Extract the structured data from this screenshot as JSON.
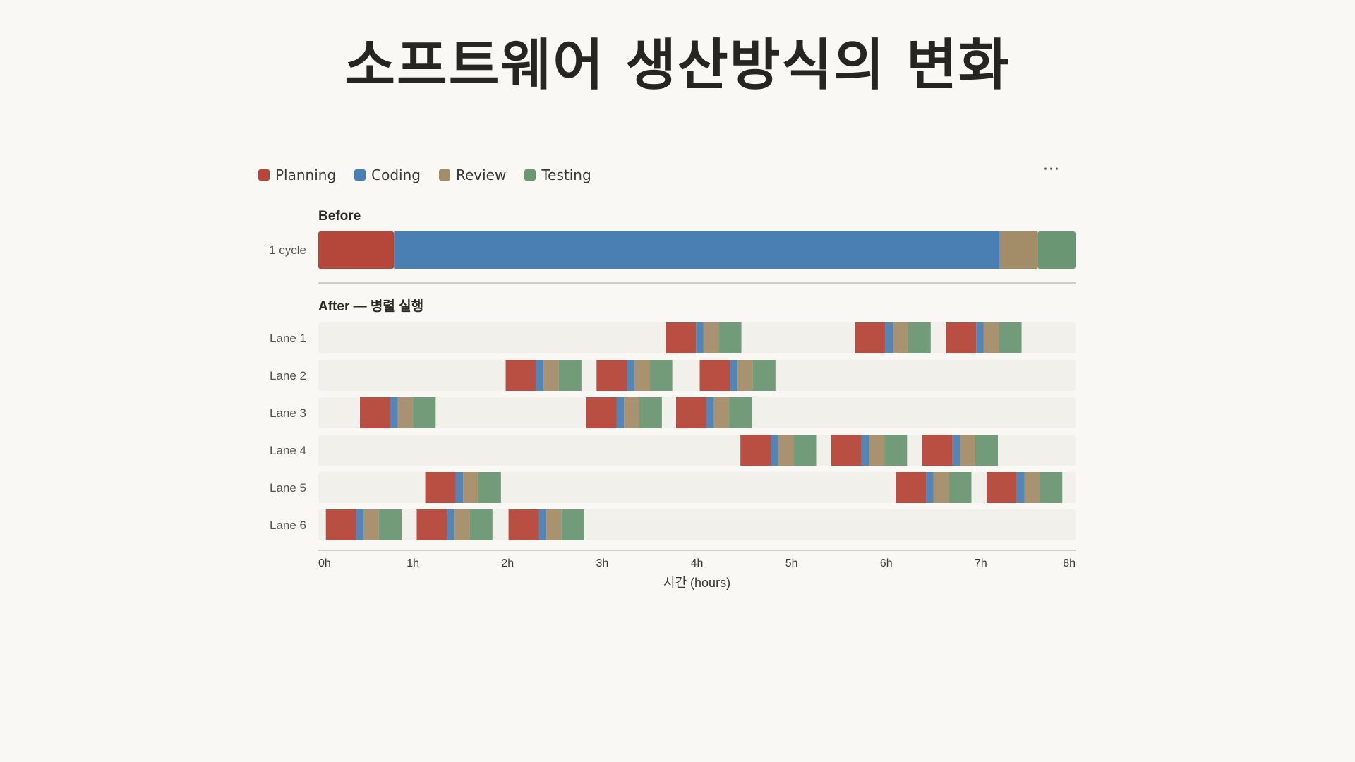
{
  "page": {
    "title": "소프트웨어 생산방식의 변화"
  },
  "menu": {
    "more_label": "···"
  },
  "colors": {
    "Planning": "#b5463a",
    "Coding": "#4a7fb3",
    "Review": "#a38c68",
    "Testing": "#6a9673",
    "lane_bg": "#f2f0eb",
    "axis": "#cfcdc7"
  },
  "chart_data": {
    "type": "gantt",
    "legend_position": "top-left",
    "phases": [
      "Planning",
      "Coding",
      "Review",
      "Testing"
    ],
    "xlabel": "시간 (hours)",
    "xlim": [
      0,
      8
    ],
    "xticks": [
      "0h",
      "1h",
      "2h",
      "3h",
      "4h",
      "5h",
      "6h",
      "7h",
      "8h"
    ],
    "before": {
      "title": "Before",
      "row_label": "1 cycle",
      "segments": [
        {
          "phase": "Planning",
          "start": 0.0,
          "end": 0.8
        },
        {
          "phase": "Coding",
          "start": 0.8,
          "end": 7.2
        },
        {
          "phase": "Review",
          "start": 7.2,
          "end": 7.6
        },
        {
          "phase": "Testing",
          "start": 7.6,
          "end": 8.0
        }
      ]
    },
    "after": {
      "title": "After — 병렬 실행",
      "cycle_phase_durations": [
        {
          "phase": "Planning",
          "duration": 0.32
        },
        {
          "phase": "Coding",
          "duration": 0.08
        },
        {
          "phase": "Review",
          "duration": 0.16
        },
        {
          "phase": "Testing",
          "duration": 0.24
        }
      ],
      "lanes": [
        {
          "label": "Lane 1",
          "cycles": [
            3.67,
            5.67,
            6.63
          ]
        },
        {
          "label": "Lane 2",
          "cycles": [
            1.98,
            2.94,
            4.03
          ]
        },
        {
          "label": "Lane 3",
          "cycles": [
            0.44,
            2.83,
            3.78
          ]
        },
        {
          "label": "Lane 4",
          "cycles": [
            4.46,
            5.42,
            6.38
          ]
        },
        {
          "label": "Lane 5",
          "cycles": [
            1.13,
            6.1,
            7.06
          ]
        },
        {
          "label": "Lane 6",
          "cycles": [
            0.08,
            1.04,
            2.01
          ]
        }
      ]
    }
  }
}
